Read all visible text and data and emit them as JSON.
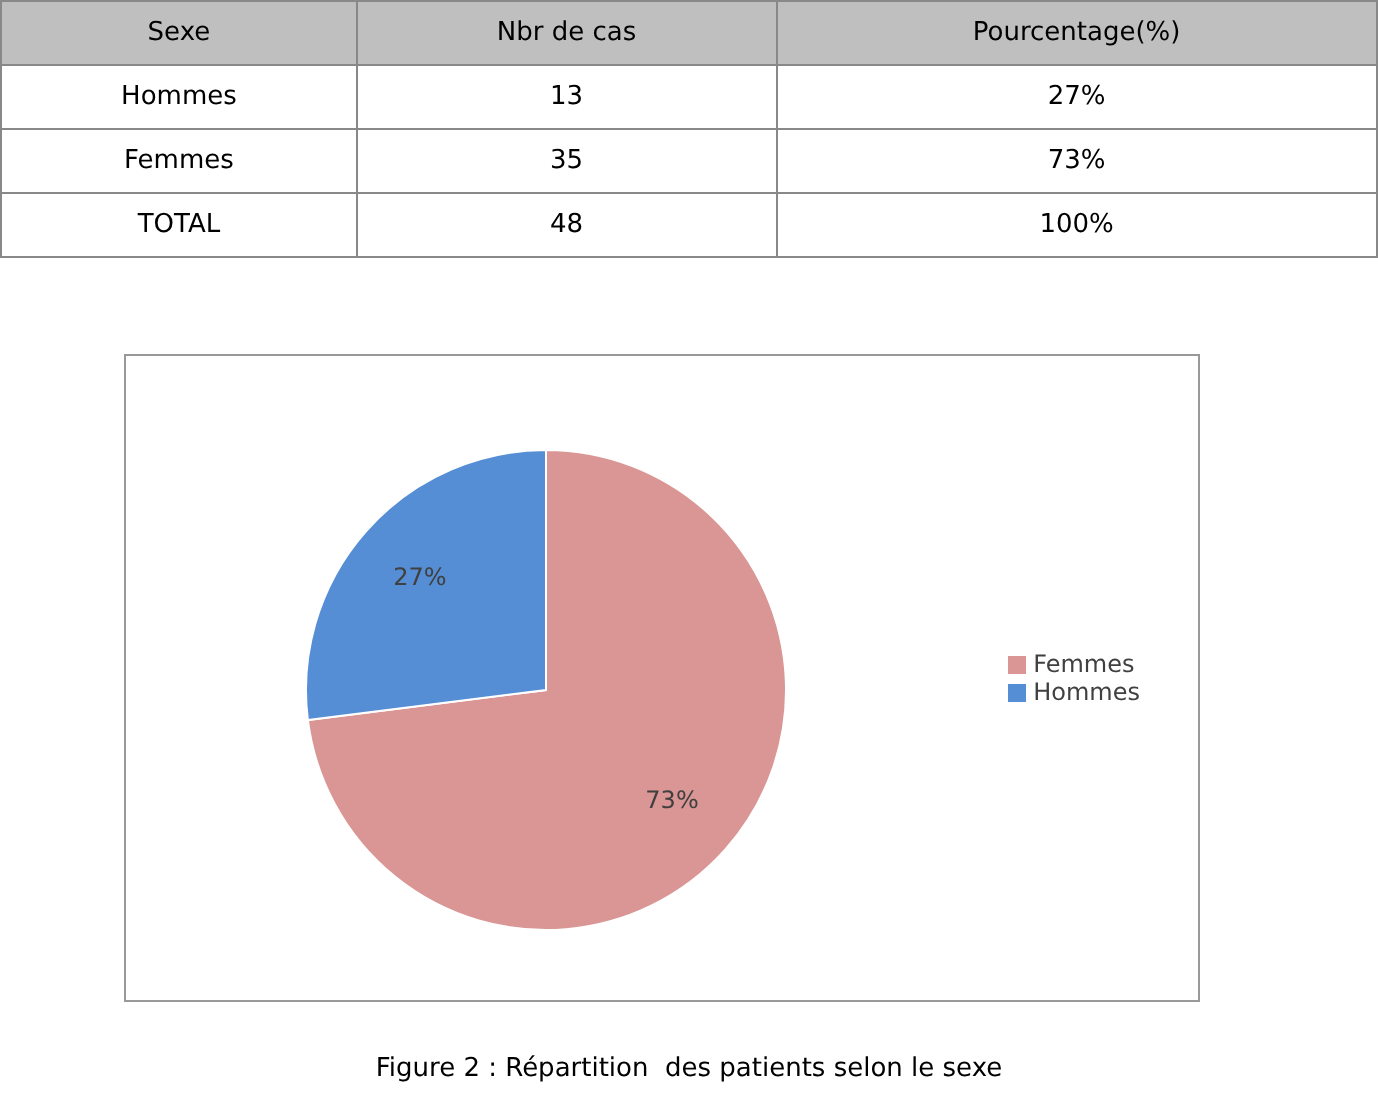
{
  "chart_data": [
    {
      "type": "other",
      "xlabel": "Sexe",
      "data_labels": true,
      "categories": [
        "Hommes",
        "Femmes",
        "TOTAL"
      ],
      "series": [
        {
          "name": "Nbr de cas",
          "values": [
            13,
            35,
            48
          ]
        },
        {
          "name": "Pourcentage(%)",
          "values": [
            27,
            73,
            100
          ],
          "value_labels": [
            "27%",
            "73%",
            "100%"
          ]
        }
      ]
    },
    {
      "type": "pie",
      "categories": [
        "Femmes",
        "Hommes"
      ],
      "values": [
        73,
        27
      ],
      "colors": [
        "#d99694",
        "#558ed5"
      ],
      "value_labels": [
        "73%",
        "27%"
      ],
      "legend": "right",
      "annotations": [
        "Figure 2 : Répartition  des patients selon le sexe"
      ]
    }
  ]
}
